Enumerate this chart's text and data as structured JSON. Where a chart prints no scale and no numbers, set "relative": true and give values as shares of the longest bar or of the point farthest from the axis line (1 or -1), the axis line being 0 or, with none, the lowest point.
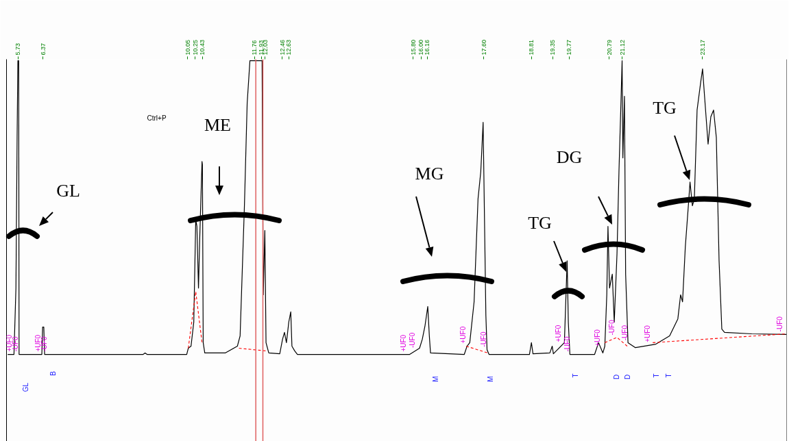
{
  "chart_data": {
    "type": "line",
    "relative": true,
    "xlim": [
      5.44,
      25.31
    ],
    "tick_labels": "x",
    "xticks": [
      5.73,
      6.37,
      10.05,
      10.25,
      10.43,
      11.76,
      11.93,
      12.03,
      12.46,
      12.63,
      {
        "value": 15.8,
        "label": "15.80"
      },
      {
        "value": 16.0,
        "label": "16.00"
      },
      16.16,
      {
        "value": 17.6,
        "label": "17.60"
      },
      18.81,
      19.35,
      19.77,
      20.79,
      21.12,
      23.17
    ],
    "series": [
      {
        "color": "#000000",
        "line_style": "solid",
        "x": [
          5.47,
          5.63,
          5.68,
          5.71,
          5.73,
          5.75,
          5.76,
          6.34,
          6.36,
          6.39,
          6.41,
          8.92,
          8.97,
          9.02,
          10.03,
          10.07,
          10.14,
          10.21,
          10.26,
          10.29,
          10.33,
          10.36,
          10.42,
          10.43,
          10.45,
          10.49,
          11.01,
          11.32,
          11.39,
          11.5,
          11.57,
          11.64,
          11.95,
          11.98,
          12.02,
          12.05,
          12.12,
          12.4,
          12.47,
          12.52,
          12.57,
          12.63,
          12.68,
          12.71,
          12.78,
          12.85,
          15.71,
          15.96,
          16.03,
          16.1,
          16.17,
          16.21,
          16.24,
          17.1,
          17.17,
          17.24,
          17.35,
          17.45,
          17.52,
          17.58,
          17.61,
          17.65,
          17.68,
          17.73,
          18.76,
          18.81,
          18.85,
          19.28,
          19.34,
          19.37,
          19.65,
          19.72,
          19.75,
          19.79,
          20.42,
          20.52,
          20.63,
          20.68,
          20.73,
          20.76,
          20.8,
          20.87,
          20.92,
          20.99,
          21.04,
          21.09,
          21.12,
          21.14,
          21.18,
          21.21,
          21.27,
          21.46,
          21.98,
          22.33,
          22.54,
          22.61,
          22.66,
          22.73,
          22.82,
          22.85,
          22.91,
          22.96,
          23.03,
          23.12,
          23.17,
          23.22,
          23.31,
          23.38,
          23.45,
          23.52,
          23.59,
          23.66,
          23.73,
          24.42,
          25.31
        ],
        "values": [
          0,
          0,
          0.226,
          0.739,
          1.0,
          1.0,
          0,
          0,
          0.093,
          0.093,
          0,
          0,
          0.005,
          0,
          0,
          0.021,
          0.028,
          0.11,
          0.459,
          0.436,
          0.226,
          0.389,
          0.657,
          0.646,
          0.04,
          0.005,
          0.005,
          0.028,
          0.063,
          0.506,
          0.855,
          1.0,
          1.0,
          0.203,
          0.422,
          0.04,
          0.005,
          0.002,
          0.051,
          0.075,
          0.04,
          0.11,
          0.145,
          0.028,
          0.012,
          0,
          0,
          0.021,
          0.051,
          0.098,
          0.163,
          0.063,
          0.005,
          0,
          0.028,
          0.04,
          0.179,
          0.529,
          0.622,
          0.79,
          0.506,
          0.133,
          0.016,
          0,
          0,
          0.04,
          0.002,
          0.005,
          0.028,
          0.002,
          0.04,
          0.319,
          0.11,
          0,
          0,
          0.04,
          0.005,
          0.028,
          0.203,
          0.436,
          0.226,
          0.273,
          0.11,
          0.343,
          0.622,
          0.855,
          1.0,
          0.669,
          0.879,
          0.273,
          0.04,
          0.023,
          0.035,
          0.063,
          0.121,
          0.203,
          0.179,
          0.366,
          0.529,
          0.587,
          0.506,
          0.529,
          0.832,
          0.925,
          0.972,
          0.879,
          0.716,
          0.809,
          0.832,
          0.739,
          0.319,
          0.086,
          0.075,
          0.07,
          0.068
        ]
      },
      {
        "color": "#ff0000",
        "line_style": "dashed",
        "x": [
          10.07,
          10.26,
          10.42,
          10.45,
          11.36,
          12.05,
          12.1,
          17.15,
          17.7,
          17.8,
          20.68,
          20.99,
          21.25,
          21.3,
          21.9,
          25.31
        ],
        "values": [
          0.021,
          0.214,
          0.04,
          null,
          0.021,
          0.012,
          null,
          0.028,
          0.005,
          null,
          0.04,
          0.058,
          0.028,
          null,
          0.04,
          0.07
        ]
      }
    ],
    "ref_lines": [
      {
        "axis": "x",
        "value": 11.79,
        "color": "#e06060"
      },
      {
        "axis": "x",
        "value": 11.97,
        "color": "#e06060"
      }
    ],
    "annotations": [
      "Ctrl+P",
      "GL",
      "B",
      "M",
      "M",
      "T",
      "D",
      "D",
      "T",
      "T",
      "GL",
      "ME",
      "MG",
      "TG",
      "DG",
      "TG",
      {
        "text": "+UF0",
        "x": 5.61,
        "y": 0
      },
      {
        "text": "-UF0",
        "x": 5.76,
        "y": 0
      },
      {
        "text": "+UF0",
        "x": 6.34,
        "y": 0
      },
      {
        "text": "-UF0",
        "x": 6.5,
        "y": 0
      },
      {
        "text": "+UF0",
        "x": 15.64,
        "y": 0
      },
      {
        "text": "-UF0",
        "x": 15.87,
        "y": 0.013
      },
      {
        "text": "+UF0",
        "x": 17.17,
        "y": 0.028
      },
      {
        "text": "-UF0",
        "x": 17.68,
        "y": 0.016
      },
      {
        "text": "+UF0",
        "x": 19.6,
        "y": 0.033
      },
      {
        "text": "-UF0",
        "x": 19.82,
        "y": 0
      },
      {
        "text": "+UF0",
        "x": 20.59,
        "y": 0.018
      },
      {
        "text": "-UF0",
        "x": 20.96,
        "y": 0.056
      },
      {
        "text": "-UF0",
        "x": 21.29,
        "y": 0.038
      },
      {
        "text": "+UF0",
        "x": 21.86,
        "y": 0.032
      },
      {
        "text": "-UF0",
        "x": 25.24,
        "y": 0.068
      }
    ]
  }
}
